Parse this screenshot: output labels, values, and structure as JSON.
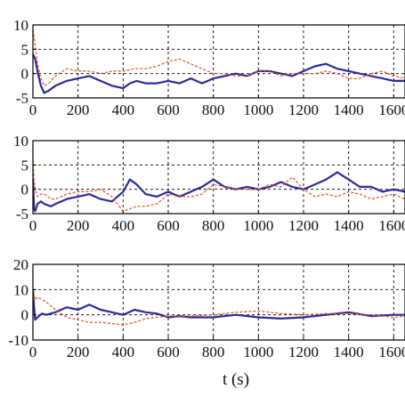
{
  "colors": {
    "primary": "#2b2b9a",
    "secondary": "#e0501e"
  },
  "chart_data": [
    {
      "type": "line",
      "xlim": [
        0,
        1650
      ],
      "ylim": [
        -5,
        10
      ],
      "xticks": [
        "0",
        "200",
        "400",
        "600",
        "800",
        "1000",
        "1200",
        "1400",
        "1600"
      ],
      "yticks": [
        "10",
        "5",
        "0",
        "-5"
      ],
      "grid": true,
      "series": [
        {
          "color": "primary",
          "style": "solid",
          "x": [
            0,
            10,
            20,
            35,
            50,
            70,
            100,
            150,
            200,
            250,
            300,
            350,
            400,
            430,
            460,
            500,
            550,
            600,
            650,
            700,
            750,
            800,
            850,
            900,
            950,
            1000,
            1050,
            1100,
            1150,
            1200,
            1250,
            1300,
            1350,
            1400,
            1450,
            1500,
            1550,
            1600,
            1650
          ],
          "y": [
            4,
            3,
            0.5,
            -2.5,
            -4,
            -3.5,
            -2.5,
            -1.5,
            -1,
            -0.5,
            -1.5,
            -2.5,
            -3,
            -2,
            -1.5,
            -2,
            -2,
            -1.5,
            -2,
            -1,
            -2,
            -1,
            -0.5,
            0,
            -0.5,
            0.5,
            0.5,
            0,
            -0.5,
            0.5,
            1.5,
            2,
            1,
            0.5,
            0,
            -0.5,
            -1,
            -1.5,
            -1.5
          ]
        },
        {
          "color": "secondary",
          "style": "dashed",
          "x": [
            0,
            10,
            20,
            35,
            50,
            70,
            100,
            150,
            200,
            250,
            300,
            350,
            400,
            450,
            500,
            550,
            600,
            650,
            700,
            750,
            800,
            850,
            900,
            950,
            1000,
            1050,
            1100,
            1150,
            1200,
            1250,
            1300,
            1350,
            1400,
            1450,
            1500,
            1550,
            1600,
            1650
          ],
          "y": [
            9,
            6,
            2,
            -1,
            -2.5,
            -2,
            -0.5,
            1,
            0.5,
            0.5,
            0,
            0.5,
            0.5,
            1,
            1,
            1.5,
            2.5,
            3,
            2,
            1,
            0,
            0,
            -0.5,
            -0.5,
            0.5,
            0.5,
            -0.5,
            0,
            0,
            0,
            0.5,
            0,
            -1,
            -1,
            0,
            0.5,
            -0.5,
            -1
          ]
        }
      ]
    },
    {
      "type": "line",
      "xlim": [
        0,
        1650
      ],
      "ylim": [
        -5,
        10
      ],
      "xticks": [
        "0",
        "200",
        "400",
        "600",
        "800",
        "1000",
        "1200",
        "1400",
        "1600"
      ],
      "yticks": [
        "10",
        "5",
        "0",
        "-5"
      ],
      "grid": true,
      "series": [
        {
          "color": "primary",
          "style": "solid",
          "x": [
            0,
            5,
            10,
            20,
            35,
            50,
            80,
            100,
            150,
            200,
            250,
            300,
            350,
            400,
            430,
            460,
            500,
            550,
            600,
            650,
            700,
            750,
            800,
            850,
            900,
            950,
            1000,
            1050,
            1100,
            1150,
            1200,
            1250,
            1300,
            1350,
            1400,
            1450,
            1500,
            1550,
            1600,
            1650
          ],
          "y": [
            2,
            -4,
            -4.5,
            -3,
            -2.5,
            -3,
            -3.5,
            -3,
            -2,
            -1.5,
            -1,
            -2,
            -2.5,
            -0.5,
            2,
            1,
            -1,
            -1.5,
            -0.5,
            -1.5,
            -0.5,
            0.5,
            2,
            0.5,
            0,
            0.5,
            0,
            0.5,
            1.5,
            0.5,
            0,
            1,
            2,
            3.5,
            2,
            0.5,
            0.5,
            -0.5,
            0,
            -0.5
          ]
        },
        {
          "color": "secondary",
          "style": "dashed",
          "x": [
            0,
            5,
            10,
            20,
            35,
            50,
            80,
            100,
            150,
            200,
            250,
            300,
            350,
            400,
            430,
            460,
            500,
            550,
            600,
            650,
            700,
            750,
            800,
            850,
            900,
            950,
            1000,
            1050,
            1100,
            1150,
            1200,
            1250,
            1300,
            1350,
            1400,
            1450,
            1500,
            1550,
            1600,
            1650
          ],
          "y": [
            6,
            2,
            0,
            -1.5,
            -1,
            -1,
            -2,
            -2,
            -1,
            -0.5,
            -0.5,
            0,
            -1.5,
            -4.5,
            -4,
            -3.5,
            -3.5,
            -3,
            -1,
            -1.5,
            -1.5,
            -1,
            1,
            0.5,
            0,
            0,
            0,
            1,
            0.5,
            2.5,
            0,
            -1.5,
            -1,
            -1.5,
            -0.5,
            -1,
            -2,
            -1.5,
            -1,
            -2
          ]
        }
      ]
    },
    {
      "type": "line",
      "xlim": [
        0,
        1650
      ],
      "ylim": [
        -10,
        20
      ],
      "xticks": [
        "0",
        "200",
        "400",
        "600",
        "800",
        "1000",
        "1200",
        "1400",
        "1600"
      ],
      "yticks": [
        "20",
        "10",
        "0",
        "-10"
      ],
      "grid": true,
      "series": [
        {
          "color": "primary",
          "style": "solid",
          "x": [
            0,
            5,
            10,
            20,
            40,
            60,
            100,
            150,
            200,
            250,
            300,
            350,
            400,
            450,
            500,
            550,
            600,
            650,
            700,
            800,
            900,
            1000,
            1100,
            1200,
            1300,
            1400,
            1500,
            1600,
            1650
          ],
          "y": [
            10,
            3,
            -2,
            -1,
            0.5,
            0,
            1,
            3,
            2,
            4,
            2,
            1,
            0,
            2,
            1,
            0.5,
            -1,
            -0.5,
            -1,
            -1,
            0,
            -1,
            -1.5,
            -1,
            0,
            1,
            -0.5,
            0,
            0
          ]
        },
        {
          "color": "secondary",
          "style": "dashed",
          "x": [
            0,
            5,
            10,
            20,
            40,
            60,
            100,
            150,
            200,
            250,
            300,
            350,
            400,
            450,
            500,
            550,
            600,
            700,
            800,
            900,
            1000,
            1100,
            1200,
            1300,
            1400,
            1500,
            1600,
            1650
          ],
          "y": [
            5,
            8,
            6,
            7,
            6,
            5,
            2,
            -1,
            -2,
            -3,
            -3,
            -3.5,
            -4,
            -3,
            -1.5,
            -1,
            -0.5,
            -0.5,
            0,
            1,
            1.5,
            0.5,
            0,
            0.5,
            0.5,
            0,
            -1,
            -0.5
          ]
        }
      ]
    }
  ],
  "xlabel": "t (s)"
}
